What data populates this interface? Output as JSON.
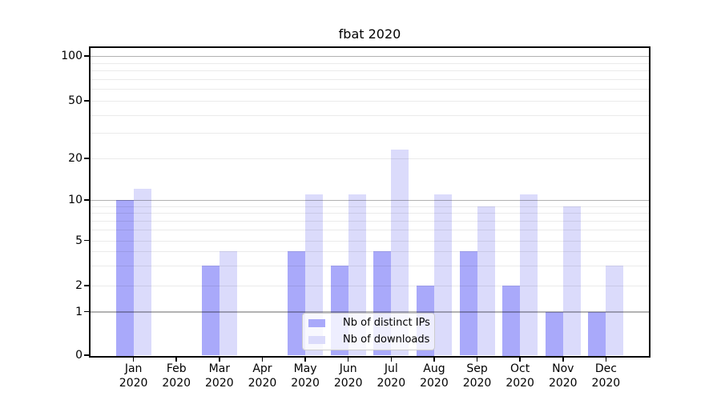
{
  "chart_data": {
    "type": "bar",
    "title": "fbat 2020",
    "categories": [
      "Jan 2020",
      "Feb 2020",
      "Mar 2020",
      "Apr 2020",
      "May 2020",
      "Jun 2020",
      "Jul 2020",
      "Aug 2020",
      "Sep 2020",
      "Oct 2020",
      "Nov 2020",
      "Dec 2020"
    ],
    "series": [
      {
        "name": "Nb of distinct IPs",
        "color": "#a9a9fa",
        "values": [
          10,
          0,
          3,
          0,
          4,
          3,
          4,
          2,
          4,
          2,
          1,
          1
        ]
      },
      {
        "name": "Nb of downloads",
        "color": "#dbdbfb",
        "values": [
          12,
          0,
          4,
          0,
          11,
          11,
          23,
          11,
          9,
          11,
          9,
          3
        ]
      }
    ],
    "xlabel": "",
    "ylabel": "",
    "y_axis": {
      "scale": "log above 1, linear 0 to 1",
      "ticks": [
        0,
        1,
        2,
        5,
        10,
        20,
        50,
        100
      ],
      "major_gridlines": [
        1,
        10,
        100
      ],
      "minor_gridlines": [
        2,
        3,
        4,
        5,
        6,
        7,
        8,
        9,
        20,
        30,
        40,
        50,
        60,
        70,
        80,
        90
      ],
      "range": [
        0,
        115
      ]
    },
    "legend": {
      "position": "lower center"
    },
    "grid": true
  },
  "colors": {
    "background": "#ffffff",
    "axis": "#000000",
    "major_grid": "rgba(0,0,0,0.30)",
    "minor_grid": "rgba(0,0,0,0.08)",
    "series_ips": "#a9a9fa",
    "series_downloads": "#dbdbfb"
  }
}
